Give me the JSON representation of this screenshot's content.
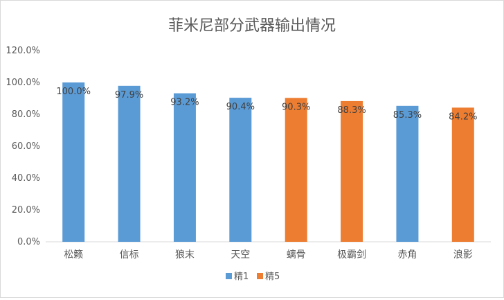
{
  "chart_data": {
    "type": "bar",
    "title": "菲米尼部分武器输出情况",
    "categories": [
      "松籁",
      "信标",
      "狼末",
      "天空",
      "螭骨",
      "极霸剑",
      "赤角",
      "浪影"
    ],
    "values": [
      100.0,
      97.9,
      93.2,
      90.4,
      90.3,
      88.3,
      85.3,
      84.2
    ],
    "data_labels": [
      "100.0%",
      "97.9%",
      "93.2%",
      "90.4%",
      "90.3%",
      "88.3%",
      "85.3%",
      "84.2%"
    ],
    "group": [
      "精1",
      "精1",
      "精1",
      "精1",
      "精5",
      "精5",
      "精1",
      "精5"
    ],
    "legend": [
      {
        "name": "精1",
        "color": "#5b9bd5"
      },
      {
        "name": "精5",
        "color": "#ed7d31"
      }
    ],
    "yticks": [
      "0.0%",
      "20.0%",
      "40.0%",
      "60.0%",
      "80.0%",
      "100.0%",
      "120.0%"
    ],
    "ylim": [
      0,
      120
    ],
    "grid": false,
    "legend_position": "bottom"
  }
}
